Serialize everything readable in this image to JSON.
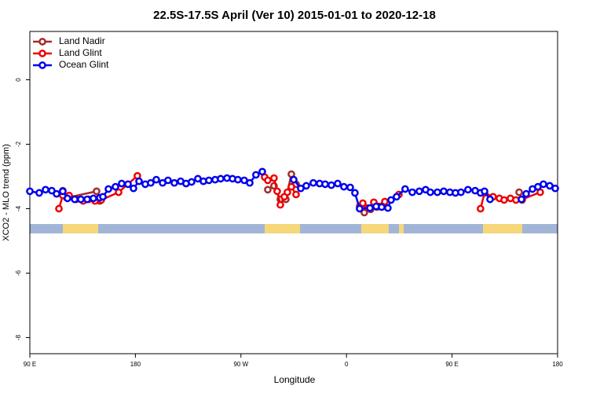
{
  "chart_data": {
    "type": "line",
    "title": "22.5S-17.5S April (Ver 10)   2015-01-01 to 2020-12-18",
    "xlabel": "Longitude",
    "ylabel": "XCO2 - MLO trend (ppm)",
    "xlim": [
      90,
      540
    ],
    "ylim": [
      -8.5,
      1.5
    ],
    "xticks": [
      {
        "value": 90,
        "label": "90 E"
      },
      180,
      {
        "value": 270,
        "label": "90 W"
      },
      {
        "value": 360,
        "label": "0"
      },
      {
        "value": 450,
        "label": "90 E"
      },
      {
        "value": 540,
        "label": "180"
      }
    ],
    "yticks": [
      0,
      -2,
      -4,
      -6,
      -8
    ],
    "legend": "top-left",
    "series": [
      {
        "name": "Land Nadir",
        "color": "#a52a2a",
        "x": [
          118.1,
          121.5,
          146.9,
          149.6,
          null,
          292.9,
          298.2,
          303.6,
          308.3,
          313,
          317,
          null,
          371.2,
          375.2,
          380.6,
          385.9,
          391.3,
          null,
          507.2,
          509.8
        ],
        "values": [
          -3.44,
          -3.66,
          -3.46,
          -3.76,
          null,
          -3.41,
          -3.29,
          -3.71,
          -3.71,
          -2.93,
          -3.24,
          null,
          -3.93,
          -4.12,
          -4.02,
          -3.95,
          -3.9,
          null,
          -3.49,
          -3.73
        ]
      },
      {
        "name": "Land Glint",
        "color": "#ee0000",
        "x": [
          114.8,
          118.1,
          123.5,
          129.5,
          135.5,
          140.2,
          145.6,
          150.9,
          165.7,
          181.7,
          null,
          290.2,
          292.9,
          298.2,
          300.9,
          303.6,
          307,
          309.6,
          313,
          317,
          null,
          373.9,
          377.9,
          383.3,
          387.3,
          392.7,
          404.7,
          null,
          474.3,
          477.7,
          485,
          490.4,
          494.4,
          499.8,
          504.5,
          509.8,
          525.2
        ],
        "values": [
          -4.0,
          -3.59,
          -3.59,
          -3.71,
          -3.76,
          -3.71,
          -3.76,
          -3.73,
          -3.49,
          -2.98,
          null,
          -3.02,
          -3.12,
          -3.05,
          -3.46,
          -3.88,
          -3.63,
          -3.49,
          -3.32,
          -3.56,
          null,
          -3.83,
          -3.98,
          -3.8,
          -3.93,
          -3.78,
          -3.56,
          null,
          -4.0,
          -3.51,
          -3.63,
          -3.68,
          -3.73,
          -3.68,
          -3.73,
          -3.71,
          -3.49
        ]
      },
      {
        "name": "Ocean Glint",
        "color": "#0000ee",
        "x": [
          90,
          98,
          103.4,
          108.7,
          112.8,
          118.1,
          122.1,
          128.2,
          133.5,
          138.9,
          144.2,
          149.6,
          152.3,
          157,
          163,
          168.3,
          173.7,
          178.4,
          183.1,
          188.4,
          193.1,
          197.8,
          203.2,
          207.8,
          213.2,
          218.6,
          223.2,
          227.9,
          233.3,
          238,
          242.7,
          248,
          252.7,
          258.1,
          262.8,
          267.4,
          272.8,
          277.5,
          282.8,
          288.2,
          null,
          315,
          321,
          325.7,
          331.7,
          337.1,
          341.8,
          347.1,
          352.5,
          357.8,
          363.2,
          367.2,
          371.2,
          380,
          385.3,
          390,
          395.3,
          398,
          402.7,
          410,
          416.1,
          422.1,
          427.5,
          431.5,
          437.5,
          442.9,
          448.2,
          452.9,
          457.6,
          463.6,
          469.7,
          474.3,
          477.7,
          482.4,
          null,
          509.2,
          513.2,
          518.6,
          523.2,
          527.9,
          533.3,
          538
        ],
        "values": [
          -3.46,
          -3.51,
          -3.41,
          -3.44,
          -3.54,
          -3.46,
          -3.68,
          -3.71,
          -3.71,
          -3.71,
          -3.68,
          -3.66,
          -3.63,
          -3.39,
          -3.32,
          -3.22,
          -3.24,
          -3.37,
          -3.15,
          -3.24,
          -3.2,
          -3.1,
          -3.2,
          -3.12,
          -3.2,
          -3.15,
          -3.22,
          -3.17,
          -3.07,
          -3.15,
          -3.12,
          -3.1,
          -3.07,
          -3.05,
          -3.07,
          -3.1,
          -3.12,
          -3.2,
          -2.95,
          -2.85,
          null,
          -3.1,
          -3.37,
          -3.29,
          -3.2,
          -3.22,
          -3.24,
          -3.27,
          -3.22,
          -3.32,
          -3.34,
          -3.51,
          -4.0,
          -3.98,
          -3.93,
          -3.95,
          -3.98,
          -3.73,
          -3.63,
          -3.39,
          -3.49,
          -3.46,
          -3.41,
          -3.49,
          -3.49,
          -3.46,
          -3.49,
          -3.51,
          -3.49,
          -3.41,
          -3.44,
          -3.51,
          -3.46,
          -3.71,
          null,
          -3.71,
          -3.54,
          -3.39,
          -3.32,
          -3.24,
          -3.29,
          -3.37
        ]
      }
    ]
  }
}
